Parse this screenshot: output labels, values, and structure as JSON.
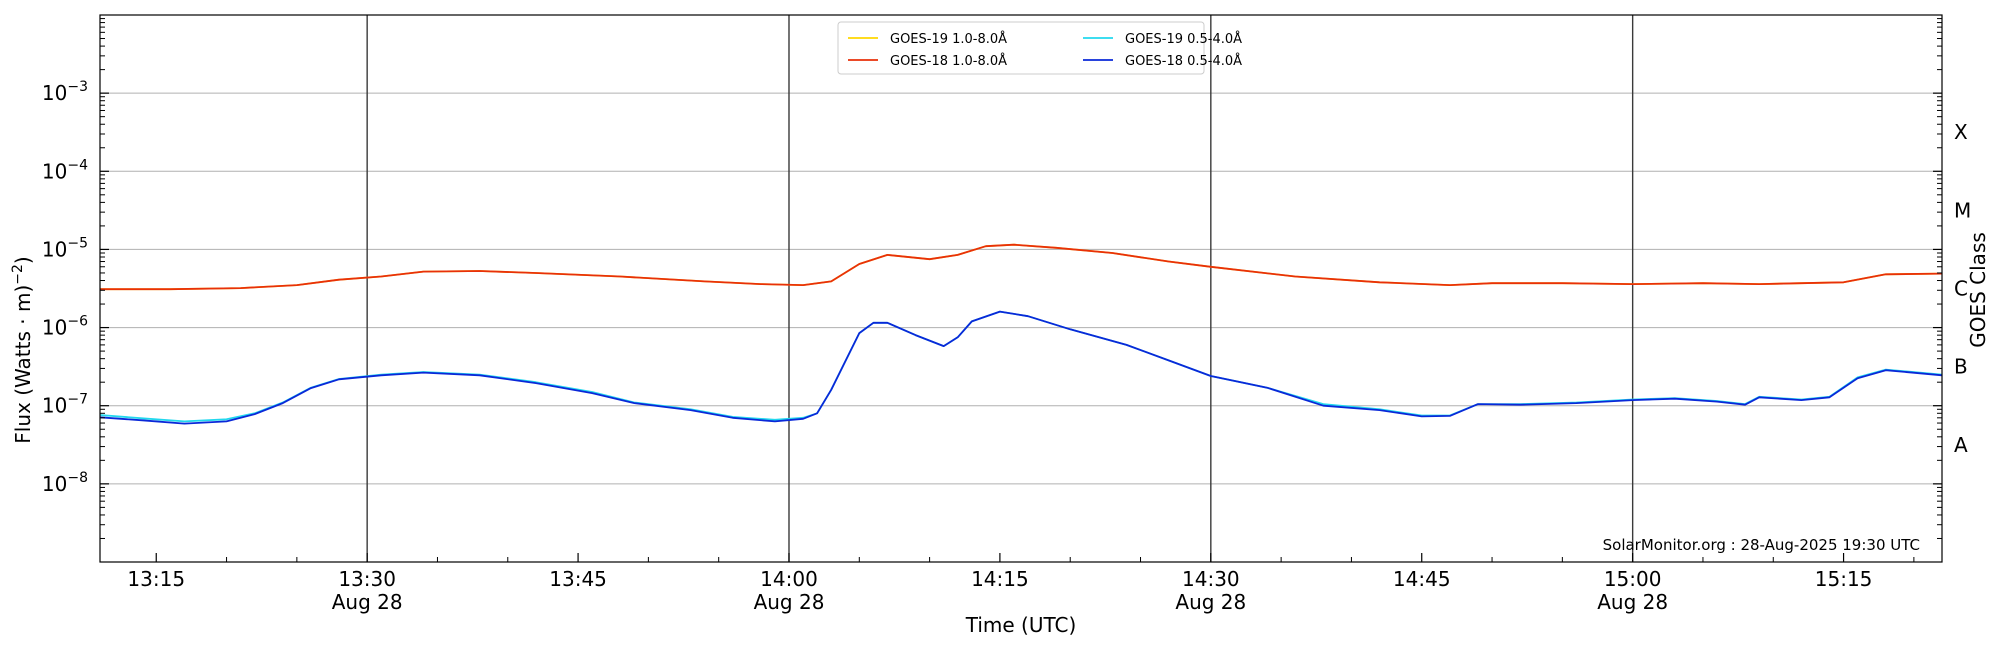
{
  "chart_data": {
    "type": "line",
    "title": "",
    "xlabel": "Time (UTC)",
    "ylabel": "Flux (Watts · m⁻²)",
    "right_label": "GOES Class",
    "y_scale": "log",
    "ylim": [
      1e-09,
      0.01
    ],
    "xlim": [
      "2025-08-28 13:11",
      "2025-08-28 15:22"
    ],
    "grid": "horizontal at decades, vertical at half-hours",
    "legend_position": "top-center",
    "y_ticks": [
      {
        "value": 1e-08,
        "base": "10",
        "exp": "−8"
      },
      {
        "value": 1e-07,
        "base": "10",
        "exp": "−7"
      },
      {
        "value": 1e-06,
        "base": "10",
        "exp": "−6"
      },
      {
        "value": 1e-05,
        "base": "10",
        "exp": "−5"
      },
      {
        "value": 0.0001,
        "base": "10",
        "exp": "−4"
      },
      {
        "value": 0.001,
        "base": "10",
        "exp": "−3"
      }
    ],
    "x_ticks": [
      {
        "time": "13:15",
        "label": "13:15",
        "date": ""
      },
      {
        "time": "13:30",
        "label": "13:30",
        "date": "Aug 28"
      },
      {
        "time": "13:45",
        "label": "13:45",
        "date": ""
      },
      {
        "time": "14:00",
        "label": "14:00",
        "date": "Aug 28"
      },
      {
        "time": "14:15",
        "label": "14:15",
        "date": ""
      },
      {
        "time": "14:30",
        "label": "14:30",
        "date": "Aug 28"
      },
      {
        "time": "14:45",
        "label": "14:45",
        "date": ""
      },
      {
        "time": "15:00",
        "label": "15:00",
        "date": "Aug 28"
      },
      {
        "time": "15:15",
        "label": "15:15",
        "date": ""
      }
    ],
    "goes_classes": [
      {
        "label": "A",
        "value": 3.16e-08
      },
      {
        "label": "B",
        "value": 3.16e-07
      },
      {
        "label": "C",
        "value": 3.16e-06
      },
      {
        "label": "M",
        "value": 3.16e-05
      },
      {
        "label": "X",
        "value": 0.000316
      }
    ],
    "credit": "SolarMonitor.org : 28-Aug-2025 19:30 UTC",
    "series": [
      {
        "name": "GOES-19 1.0-8.0Å",
        "color": "#ffd700",
        "points": [
          [
            "13:11",
            3.1e-06
          ],
          [
            "13:16",
            3.1e-06
          ],
          [
            "13:21",
            3.2e-06
          ],
          [
            "13:25",
            3.5e-06
          ],
          [
            "13:28",
            4.1e-06
          ],
          [
            "13:31",
            4.5e-06
          ],
          [
            "13:34",
            5.2e-06
          ],
          [
            "13:38",
            5.3e-06
          ],
          [
            "13:42",
            5e-06
          ],
          [
            "13:48",
            4.5e-06
          ],
          [
            "13:54",
            3.9e-06
          ],
          [
            "13:58",
            3.6e-06
          ],
          [
            "14:01",
            3.5e-06
          ],
          [
            "14:03",
            3.9e-06
          ],
          [
            "14:05",
            6.5e-06
          ],
          [
            "14:07",
            8.5e-06
          ],
          [
            "14:10",
            7.5e-06
          ],
          [
            "14:12",
            8.5e-06
          ],
          [
            "14:14",
            1.1e-05
          ],
          [
            "14:16",
            1.15e-05
          ],
          [
            "14:19",
            1.05e-05
          ],
          [
            "14:23",
            9e-06
          ],
          [
            "14:27",
            7e-06
          ],
          [
            "14:30",
            6e-06
          ],
          [
            "14:36",
            4.5e-06
          ],
          [
            "14:42",
            3.8e-06
          ],
          [
            "14:47",
            3.5e-06
          ],
          [
            "14:50",
            3.7e-06
          ],
          [
            "14:55",
            3.7e-06
          ],
          [
            "15:00",
            3.6e-06
          ],
          [
            "15:05",
            3.7e-06
          ],
          [
            "15:09",
            3.6e-06
          ],
          [
            "15:12",
            3.7e-06
          ],
          [
            "15:15",
            3.8e-06
          ],
          [
            "15:18",
            4.8e-06
          ],
          [
            "15:22",
            4.9e-06
          ]
        ]
      },
      {
        "name": "GOES-18 1.0-8.0Å",
        "color": "#e8300a",
        "points": [
          [
            "13:11",
            3.1e-06
          ],
          [
            "13:16",
            3.1e-06
          ],
          [
            "13:21",
            3.2e-06
          ],
          [
            "13:25",
            3.5e-06
          ],
          [
            "13:28",
            4.1e-06
          ],
          [
            "13:31",
            4.5e-06
          ],
          [
            "13:34",
            5.2e-06
          ],
          [
            "13:38",
            5.3e-06
          ],
          [
            "13:42",
            5e-06
          ],
          [
            "13:48",
            4.5e-06
          ],
          [
            "13:54",
            3.9e-06
          ],
          [
            "13:58",
            3.6e-06
          ],
          [
            "14:01",
            3.5e-06
          ],
          [
            "14:03",
            3.9e-06
          ],
          [
            "14:05",
            6.5e-06
          ],
          [
            "14:07",
            8.5e-06
          ],
          [
            "14:10",
            7.5e-06
          ],
          [
            "14:12",
            8.5e-06
          ],
          [
            "14:14",
            1.1e-05
          ],
          [
            "14:16",
            1.15e-05
          ],
          [
            "14:19",
            1.05e-05
          ],
          [
            "14:23",
            9e-06
          ],
          [
            "14:27",
            7e-06
          ],
          [
            "14:30",
            6e-06
          ],
          [
            "14:36",
            4.5e-06
          ],
          [
            "14:42",
            3.8e-06
          ],
          [
            "14:47",
            3.5e-06
          ],
          [
            "14:50",
            3.7e-06
          ],
          [
            "14:55",
            3.7e-06
          ],
          [
            "15:00",
            3.6e-06
          ],
          [
            "15:05",
            3.7e-06
          ],
          [
            "15:09",
            3.6e-06
          ],
          [
            "15:12",
            3.7e-06
          ],
          [
            "15:15",
            3.8e-06
          ],
          [
            "15:18",
            4.8e-06
          ],
          [
            "15:22",
            4.9e-06
          ]
        ]
      },
      {
        "name": "GOES-19 0.5-4.0Å",
        "color": "#22d8ee",
        "points": [
          [
            "13:11",
            7.6e-08
          ],
          [
            "13:14",
            6.9e-08
          ],
          [
            "13:17",
            6.3e-08
          ],
          [
            "13:20",
            6.7e-08
          ],
          [
            "13:22",
            8e-08
          ],
          [
            "13:24",
            1.1e-07
          ],
          [
            "13:26",
            1.7e-07
          ],
          [
            "13:28",
            2.2e-07
          ],
          [
            "13:31",
            2.5e-07
          ],
          [
            "13:34",
            2.7e-07
          ],
          [
            "13:38",
            2.5e-07
          ],
          [
            "13:42",
            2e-07
          ],
          [
            "13:46",
            1.5e-07
          ],
          [
            "13:49",
            1.1e-07
          ],
          [
            "13:53",
            9e-08
          ],
          [
            "13:56",
            7.2e-08
          ],
          [
            "13:59",
            6.6e-08
          ],
          [
            "14:01",
            7e-08
          ],
          [
            "14:02",
            8e-08
          ],
          [
            "14:03",
            1.6e-07
          ],
          [
            "14:05",
            8.5e-07
          ],
          [
            "14:06",
            1.15e-06
          ],
          [
            "14:07",
            1.15e-06
          ],
          [
            "14:09",
            8e-07
          ],
          [
            "14:11",
            5.8e-07
          ],
          [
            "14:12",
            7.5e-07
          ],
          [
            "14:13",
            1.2e-06
          ],
          [
            "14:15",
            1.6e-06
          ],
          [
            "14:17",
            1.4e-06
          ],
          [
            "14:20",
            9.5e-07
          ],
          [
            "14:24",
            6e-07
          ],
          [
            "14:27",
            3.8e-07
          ],
          [
            "14:30",
            2.4e-07
          ],
          [
            "14:34",
            1.7e-07
          ],
          [
            "14:38",
            1.05e-07
          ],
          [
            "14:42",
            9e-08
          ],
          [
            "14:45",
            7.5e-08
          ],
          [
            "14:47",
            7.5e-08
          ],
          [
            "14:49",
            1.05e-07
          ],
          [
            "14:52",
            1.05e-07
          ],
          [
            "14:56",
            1.1e-07
          ],
          [
            "15:00",
            1.2e-07
          ],
          [
            "15:03",
            1.25e-07
          ],
          [
            "15:06",
            1.15e-07
          ],
          [
            "15:08",
            1.05e-07
          ],
          [
            "15:09",
            1.3e-07
          ],
          [
            "15:12",
            1.2e-07
          ],
          [
            "15:14",
            1.3e-07
          ],
          [
            "15:16",
            2.3e-07
          ],
          [
            "15:18",
            2.9e-07
          ],
          [
            "15:22",
            2.5e-07
          ]
        ]
      },
      {
        "name": "GOES-18 0.5-4.0Å",
        "color": "#0a28d8",
        "points": [
          [
            "13:11",
            7.1e-08
          ],
          [
            "13:14",
            6.5e-08
          ],
          [
            "13:17",
            5.9e-08
          ],
          [
            "13:20",
            6.3e-08
          ],
          [
            "13:22",
            7.8e-08
          ],
          [
            "13:24",
            1.08e-07
          ],
          [
            "13:26",
            1.68e-07
          ],
          [
            "13:28",
            2.18e-07
          ],
          [
            "13:31",
            2.45e-07
          ],
          [
            "13:34",
            2.65e-07
          ],
          [
            "13:38",
            2.45e-07
          ],
          [
            "13:42",
            1.95e-07
          ],
          [
            "13:46",
            1.45e-07
          ],
          [
            "13:49",
            1.08e-07
          ],
          [
            "13:53",
            8.8e-08
          ],
          [
            "13:56",
            7e-08
          ],
          [
            "13:59",
            6.3e-08
          ],
          [
            "14:01",
            6.8e-08
          ],
          [
            "14:02",
            8e-08
          ],
          [
            "14:03",
            1.6e-07
          ],
          [
            "14:05",
            8.5e-07
          ],
          [
            "14:06",
            1.15e-06
          ],
          [
            "14:07",
            1.15e-06
          ],
          [
            "14:09",
            8e-07
          ],
          [
            "14:11",
            5.8e-07
          ],
          [
            "14:12",
            7.5e-07
          ],
          [
            "14:13",
            1.2e-06
          ],
          [
            "14:15",
            1.6e-06
          ],
          [
            "14:17",
            1.4e-06
          ],
          [
            "14:20",
            9.5e-07
          ],
          [
            "14:24",
            6e-07
          ],
          [
            "14:27",
            3.8e-07
          ],
          [
            "14:30",
            2.4e-07
          ],
          [
            "14:34",
            1.7e-07
          ],
          [
            "14:38",
            1e-07
          ],
          [
            "14:42",
            8.8e-08
          ],
          [
            "14:45",
            7.3e-08
          ],
          [
            "14:47",
            7.4e-08
          ],
          [
            "14:49",
            1.05e-07
          ],
          [
            "14:52",
            1.03e-07
          ],
          [
            "14:56",
            1.08e-07
          ],
          [
            "15:00",
            1.18e-07
          ],
          [
            "15:03",
            1.23e-07
          ],
          [
            "15:06",
            1.13e-07
          ],
          [
            "15:08",
            1.03e-07
          ],
          [
            "15:09",
            1.28e-07
          ],
          [
            "15:12",
            1.18e-07
          ],
          [
            "15:14",
            1.28e-07
          ],
          [
            "15:16",
            2.25e-07
          ],
          [
            "15:18",
            2.85e-07
          ],
          [
            "15:22",
            2.45e-07
          ]
        ]
      }
    ]
  }
}
